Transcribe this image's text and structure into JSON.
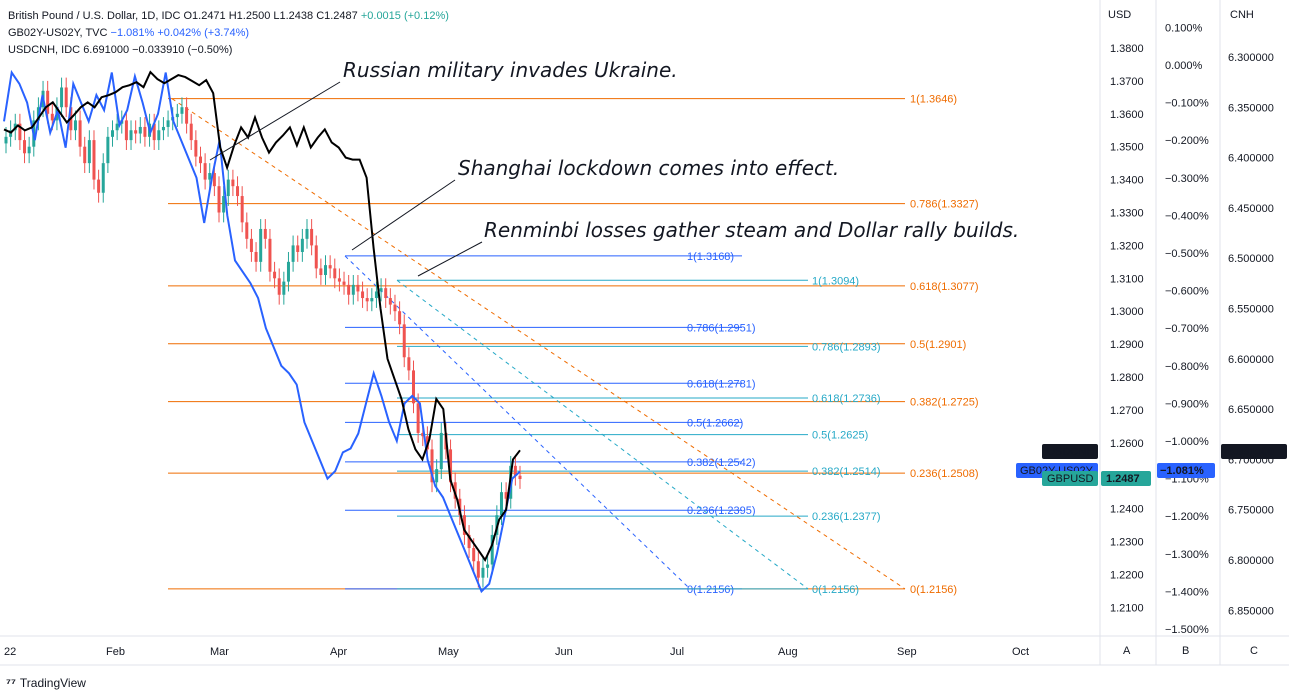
{
  "legend": {
    "line1_name": "British Pound / U.S. Dollar, 1D, IDC",
    "line1_ohlc": "O1.2471 H1.2500 L1.2438 C1.2487",
    "line1_change": "+0.0015 (+0.12%)",
    "line2_name": "GB02Y-US02Y, TVC",
    "line2_values": "−1.081% +0.042% (+3.74%)",
    "line3_name": "USDCNH, IDC",
    "line3_values": "6.691000 −0.033910 (−0.50%)"
  },
  "brand": "TradingView",
  "axis_headers": {
    "usd": "USD",
    "cnh": "CNH",
    "a": "A",
    "b": "B",
    "c": "C"
  },
  "chart_data": {
    "type": "line",
    "x_ticks": [
      "22",
      "Feb",
      "Mar",
      "Apr",
      "May",
      "Jun",
      "Jul",
      "Aug",
      "Sep",
      "Oct"
    ],
    "usd_axis": {
      "ticks": [
        "1.3800",
        "1.3700",
        "1.3600",
        "1.3500",
        "1.3400",
        "1.3300",
        "1.3200",
        "1.3100",
        "1.3000",
        "1.2900",
        "1.2800",
        "1.2700",
        "1.2600",
        "1.2500",
        "1.2400",
        "1.2300",
        "1.2200",
        "1.2100"
      ],
      "range": [
        1.205,
        1.385
      ]
    },
    "spread_axis": {
      "ticks": [
        "0.100%",
        "0.000%",
        "−0.100%",
        "−0.200%",
        "−0.300%",
        "−0.400%",
        "−0.500%",
        "−0.600%",
        "−0.700%",
        "−0.800%",
        "−0.900%",
        "−1.000%",
        "−1.100%",
        "−1.200%",
        "−1.300%",
        "−1.400%",
        "−1.500%"
      ]
    },
    "cnh_axis": {
      "ticks": [
        "6.300000",
        "6.350000",
        "6.400000",
        "6.450000",
        "6.500000",
        "6.550000",
        "6.600000",
        "6.650000",
        "6.700000",
        "6.750000",
        "6.800000",
        "6.850000"
      ]
    },
    "series": [
      {
        "name": "GBPUSD",
        "kind": "candles",
        "last": "1.2487",
        "color": "#26a69a",
        "close": [
          1.353,
          1.355,
          1.357,
          1.352,
          1.348,
          1.35,
          1.358,
          1.362,
          1.367,
          1.36,
          1.358,
          1.362,
          1.368,
          1.362,
          1.355,
          1.358,
          1.35,
          1.345,
          1.352,
          1.34,
          1.336,
          1.345,
          1.353,
          1.355,
          1.357,
          1.358,
          1.352,
          1.355,
          1.354,
          1.356,
          1.353,
          1.357,
          1.352,
          1.355,
          1.356,
          1.358,
          1.359,
          1.36,
          1.362,
          1.357,
          1.352,
          1.347,
          1.345,
          1.34,
          1.342,
          1.338,
          1.33,
          1.335,
          1.34,
          1.338,
          1.335,
          1.327,
          1.322,
          1.318,
          1.315,
          1.325,
          1.322,
          1.312,
          1.31,
          1.305,
          1.309,
          1.315,
          1.32,
          1.318,
          1.322,
          1.325,
          1.32,
          1.313,
          1.311,
          1.314,
          1.313,
          1.31,
          1.309,
          1.308,
          1.305,
          1.308,
          1.306,
          1.304,
          1.303,
          1.304,
          1.306,
          1.307,
          1.304,
          1.302,
          1.3,
          1.296,
          1.286,
          1.282,
          1.272,
          1.263,
          1.262,
          1.258,
          1.248,
          1.252,
          1.263,
          1.258,
          1.248,
          1.243,
          1.238,
          1.232,
          1.228,
          1.224,
          1.219,
          1.222,
          1.223,
          1.232,
          1.238,
          1.245,
          1.243,
          1.253,
          1.25,
          1.249
        ]
      },
      {
        "name": "GB02Y-US02Y",
        "kind": "line",
        "last": "−1.081%",
        "color": "#2962ff",
        "values": [
          -0.15,
          -0.02,
          -0.05,
          -0.1,
          -0.2,
          -0.08,
          -0.18,
          -0.12,
          -0.22,
          -0.05,
          -0.1,
          -0.15,
          -0.08,
          -0.12,
          -0.02,
          -0.16,
          -0.12,
          -0.03,
          -0.1,
          -0.18,
          -0.13,
          -0.02,
          -0.15,
          -0.2,
          -0.25,
          -0.3,
          -0.42,
          -0.3,
          -0.2,
          -0.4,
          -0.52,
          -0.55,
          -0.58,
          -0.62,
          -0.7,
          -0.75,
          -0.8,
          -0.82,
          -0.85,
          -0.95,
          -1.0,
          -1.05,
          -1.1,
          -1.08,
          -1.03,
          -1.02,
          -0.98,
          -0.9,
          -0.82,
          -0.88,
          -0.95,
          -1.0,
          -0.9,
          -0.88,
          -0.9,
          -1.05,
          -1.12,
          -1.15,
          -1.2,
          -1.25,
          -1.3,
          -1.35,
          -1.4,
          -1.38,
          -1.3,
          -1.2,
          -1.1,
          -1.081
        ]
      },
      {
        "name": "USDCNH",
        "kind": "line",
        "last": "6.691000",
        "color": "#000000",
        "values": [
          6.372,
          6.375,
          6.368,
          6.373,
          6.37,
          6.36,
          6.35,
          6.345,
          6.355,
          6.365,
          6.358,
          6.35,
          6.345,
          6.35,
          6.34,
          6.338,
          6.335,
          6.33,
          6.328,
          6.325,
          6.33,
          6.315,
          6.322,
          6.326,
          6.322,
          6.318,
          6.32,
          6.324,
          6.328,
          6.323,
          6.336,
          6.39,
          6.41,
          6.388,
          6.37,
          6.38,
          6.36,
          6.38,
          6.395,
          6.385,
          6.378,
          6.37,
          6.388,
          6.37,
          6.39,
          6.38,
          6.372,
          6.385,
          6.39,
          6.4,
          6.402,
          6.402,
          6.42,
          6.49,
          6.55,
          6.6,
          6.62,
          6.64,
          6.67,
          6.69,
          6.7,
          6.68,
          6.64,
          6.65,
          6.72,
          6.74,
          6.77,
          6.78,
          6.79,
          6.8,
          6.785,
          6.76,
          6.75,
          6.7,
          6.691
        ]
      }
    ],
    "fib_sets": [
      {
        "color": "#ef6c00",
        "levels": [
          {
            "ratio": "1",
            "value": "1.3646"
          },
          {
            "ratio": "0.786",
            "value": "1.3327"
          },
          {
            "ratio": "0.618",
            "value": "1.3077"
          },
          {
            "ratio": "0.5",
            "value": "1.2901"
          },
          {
            "ratio": "0.382",
            "value": "1.2725"
          },
          {
            "ratio": "0.236",
            "value": "1.2508"
          },
          {
            "ratio": "0",
            "value": "1.2156"
          }
        ]
      },
      {
        "color": "#2962ff",
        "levels": [
          {
            "ratio": "1",
            "value": "1.3168"
          },
          {
            "ratio": "0.786",
            "value": "1.2951"
          },
          {
            "ratio": "0.618",
            "value": "1.2781"
          },
          {
            "ratio": "0.5",
            "value": "1.2662"
          },
          {
            "ratio": "0.382",
            "value": "1.2542"
          },
          {
            "ratio": "0.236",
            "value": "1.2395"
          },
          {
            "ratio": "0",
            "value": "1.2156"
          }
        ]
      },
      {
        "color": "#26a9c7",
        "levels": [
          {
            "ratio": "1",
            "value": "1.3094"
          },
          {
            "ratio": "0.786",
            "value": "1.2893"
          },
          {
            "ratio": "0.618",
            "value": "1.2736"
          },
          {
            "ratio": "0.5",
            "value": "1.2625"
          },
          {
            "ratio": "0.382",
            "value": "1.2514"
          },
          {
            "ratio": "0.236",
            "value": "1.2377"
          },
          {
            "ratio": "0",
            "value": "1.2156"
          }
        ]
      }
    ],
    "annotations": [
      "Russian military invades Ukraine.",
      "Shanghai lockdown comes into effect.",
      "Renminbi losses gather steam and Dollar rally builds."
    ],
    "price_tags": [
      {
        "label": "USDCNH",
        "value": "6.691000"
      },
      {
        "label": "GB02Y-US02Y",
        "value": "−1.081%"
      },
      {
        "label": "GBPUSD",
        "value": "1.2487"
      }
    ],
    "colors": {
      "up": "#26a69a",
      "down": "#ef5350",
      "spread": "#2962ff",
      "usdcnh": "#000000"
    }
  }
}
